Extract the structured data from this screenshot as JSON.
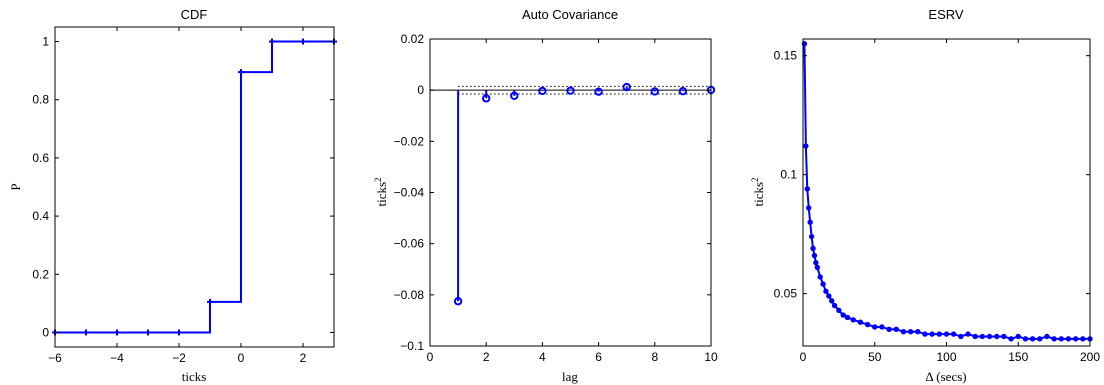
{
  "chart_data": [
    {
      "type": "line",
      "step": true,
      "title": "CDF",
      "xlabel": "ticks",
      "ylabel": "P",
      "xlim": [
        -6,
        3
      ],
      "ylim": [
        -0.05,
        1.05
      ],
      "xticks": [
        "-6",
        "-4",
        "-2",
        "0",
        "2"
      ],
      "yticks": [
        "0",
        "0.2",
        "0.4",
        "0.6",
        "0.8",
        "1"
      ],
      "series": [
        {
          "x": [
            -6,
            -5,
            -4,
            -3,
            -2,
            -1,
            0,
            1,
            2,
            3
          ],
          "values": [
            0,
            0,
            0,
            0,
            0,
            0.105,
            0.895,
            1,
            1,
            1
          ],
          "color": "#0000ff"
        }
      ]
    },
    {
      "type": "scatter",
      "stem": true,
      "title": "Auto Covariance",
      "xlabel": "lag",
      "ylabel": "ticks",
      "ylabel_superscript": "2",
      "xlim": [
        0,
        10
      ],
      "ylim": [
        -0.1,
        0.02
      ],
      "xticks": [
        "0",
        "2",
        "4",
        "6",
        "8",
        "10"
      ],
      "yticks": [
        "0.02",
        "0",
        "-0.02",
        "-0.04",
        "-0.06",
        "-0.08",
        "-0.1"
      ],
      "confidence_band": [
        -0.0015,
        0.0015
      ],
      "series": [
        {
          "x": [
            1,
            2,
            3,
            4,
            5,
            6,
            7,
            8,
            9,
            10
          ],
          "values": [
            -0.0825,
            -0.0032,
            -0.0022,
            -0.0003,
            -0.0002,
            -0.0006,
            0.0012,
            -0.0005,
            -0.0004,
            0.0001
          ],
          "color": "#0000ff"
        }
      ]
    },
    {
      "type": "line",
      "title": "ESRV",
      "xlabel": "Δ (secs)",
      "ylabel": "ticks",
      "ylabel_superscript": "2",
      "xlim": [
        0,
        200
      ],
      "ylim": [
        0.028,
        0.157
      ],
      "xticks": [
        "0",
        "50",
        "100",
        "150",
        "200"
      ],
      "yticks": [
        "0.15",
        "0.1",
        "0.05"
      ],
      "series": [
        {
          "x": [
            1,
            2,
            3,
            4,
            5,
            6,
            7,
            8,
            9,
            10,
            12,
            14,
            16,
            18,
            20,
            22,
            25,
            28,
            31,
            35,
            40,
            45,
            50,
            55,
            60,
            65,
            70,
            75,
            80,
            85,
            90,
            95,
            100,
            105,
            110,
            115,
            120,
            125,
            130,
            135,
            140,
            145,
            150,
            155,
            160,
            165,
            170,
            175,
            180,
            185,
            190,
            195,
            200
          ],
          "values": [
            0.155,
            0.112,
            0.094,
            0.086,
            0.08,
            0.074,
            0.069,
            0.066,
            0.063,
            0.061,
            0.057,
            0.054,
            0.051,
            0.049,
            0.047,
            0.045,
            0.043,
            0.041,
            0.04,
            0.039,
            0.038,
            0.037,
            0.036,
            0.036,
            0.035,
            0.035,
            0.034,
            0.034,
            0.034,
            0.033,
            0.033,
            0.033,
            0.033,
            0.033,
            0.032,
            0.033,
            0.032,
            0.032,
            0.032,
            0.032,
            0.032,
            0.031,
            0.032,
            0.031,
            0.031,
            0.031,
            0.032,
            0.031,
            0.031,
            0.031,
            0.031,
            0.031,
            0.031
          ],
          "color": "#0000ff"
        }
      ]
    }
  ]
}
